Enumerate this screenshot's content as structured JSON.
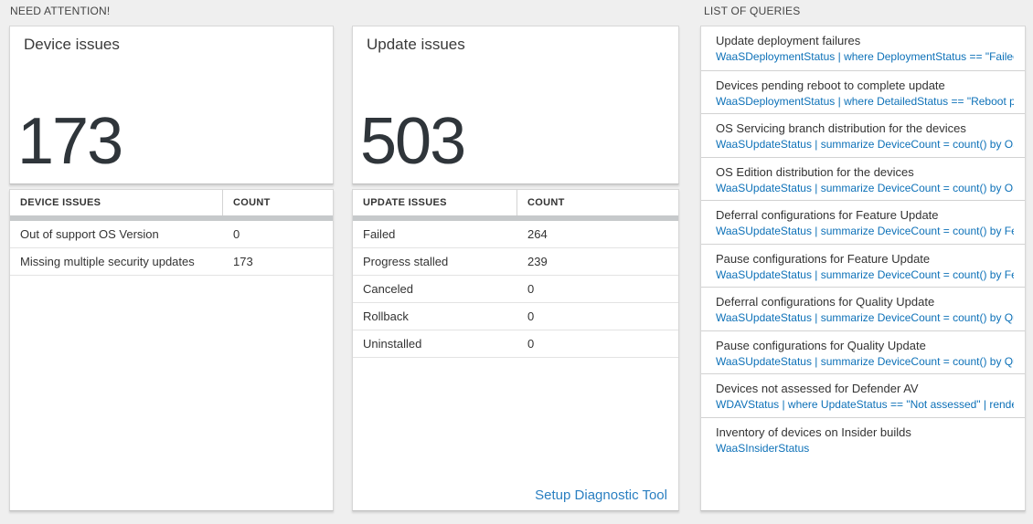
{
  "sections": {
    "need_attention": "NEED ATTENTION!",
    "list_of_queries": "LIST OF QUERIES"
  },
  "device_card": {
    "title": "Device issues",
    "count": "173"
  },
  "device_table": {
    "headers": [
      "DEVICE ISSUES",
      "COUNT"
    ],
    "rows": [
      {
        "label": "Out of support OS Version",
        "count": "0"
      },
      {
        "label": "Missing multiple security updates",
        "count": "173"
      }
    ]
  },
  "update_card": {
    "title": "Update issues",
    "count": "503"
  },
  "update_table": {
    "headers": [
      "UPDATE ISSUES",
      "COUNT"
    ],
    "rows": [
      {
        "label": "Failed",
        "count": "264"
      },
      {
        "label": "Progress stalled",
        "count": "239"
      },
      {
        "label": "Canceled",
        "count": "0"
      },
      {
        "label": "Rollback",
        "count": "0"
      },
      {
        "label": "Uninstalled",
        "count": "0"
      }
    ],
    "link_label": "Setup Diagnostic Tool"
  },
  "queries": [
    {
      "title": "Update deployment failures",
      "query": "WaaSDeploymentStatus | where DeploymentStatus == \"Failed\" |..."
    },
    {
      "title": "Devices pending reboot to complete update",
      "query": "WaaSDeploymentStatus | where DetailedStatus == \"Reboot pend..."
    },
    {
      "title": "OS Servicing branch distribution for the devices",
      "query": "WaaSUpdateStatus | summarize DeviceCount = count() by OSSer..."
    },
    {
      "title": "OS Edition distribution for the devices",
      "query": "WaaSUpdateStatus | summarize DeviceCount = count() by OSEdit..."
    },
    {
      "title": "Deferral configurations for Feature Update",
      "query": "WaaSUpdateStatus | summarize DeviceCount = count() by Featur..."
    },
    {
      "title": "Pause configurations for Feature Update",
      "query": "WaaSUpdateStatus | summarize DeviceCount = count() by Featur..."
    },
    {
      "title": "Deferral configurations for Quality Update",
      "query": "WaaSUpdateStatus | summarize DeviceCount = count() by Qualit..."
    },
    {
      "title": "Pause configurations for Quality Update",
      "query": "WaaSUpdateStatus | summarize DeviceCount = count() by Qualit..."
    },
    {
      "title": "Devices not assessed for Defender AV",
      "query": "WDAVStatus | where UpdateStatus == \"Not assessed\" | render ta..."
    },
    {
      "title": "Inventory of devices on Insider builds",
      "query": "WaaSInsiderStatus"
    }
  ],
  "colors": {
    "query_link_blue": "#0d71b8",
    "diagnostic_link_blue": "#2a7fc1",
    "big_number_gray": "#2f353a",
    "page_background": "#efefef"
  }
}
